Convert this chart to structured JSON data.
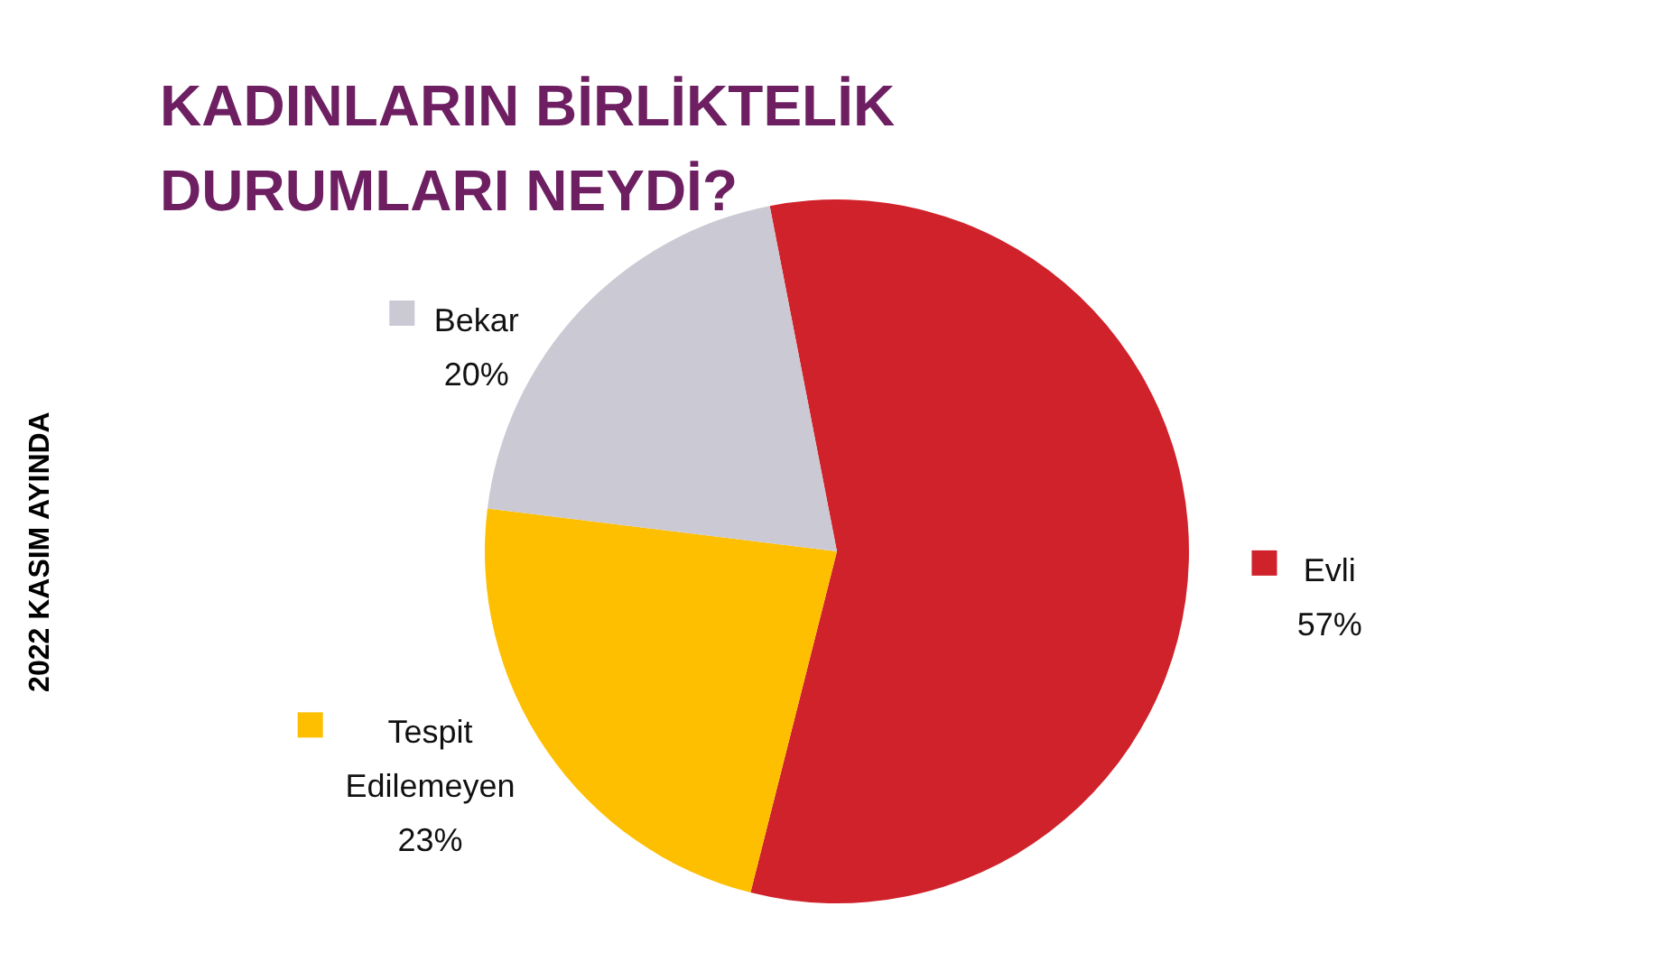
{
  "chart_data": {
    "type": "pie",
    "title": "KADINLARIN BİRLİKTELİK DURUMLARI NEYDİ?",
    "subtitle": "2022 KASIM AYINDA",
    "categories": [
      "Evli",
      "Tespit Edilemeyen",
      "Bekar"
    ],
    "values": [
      57,
      23,
      20
    ],
    "colors": [
      "#d0222b",
      "#fdbf00",
      "#cbc9d3"
    ],
    "value_labels": [
      "57%",
      "23%",
      "20%"
    ],
    "legend": "center"
  }
}
